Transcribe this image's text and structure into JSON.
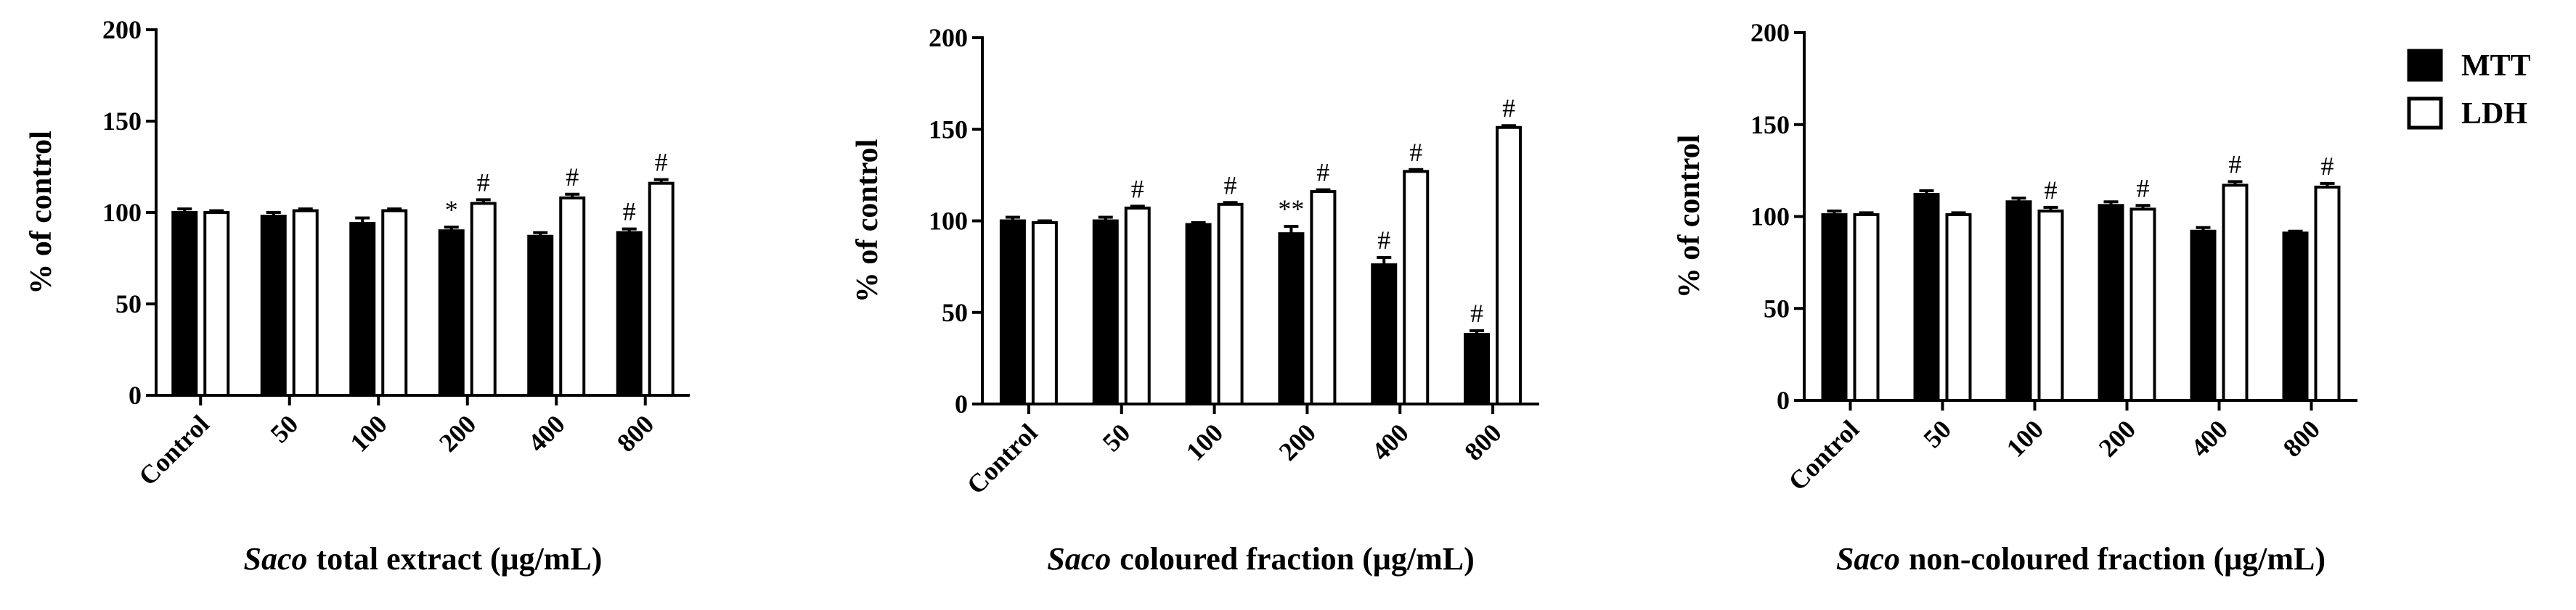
{
  "chart_data": [
    {
      "type": "bar",
      "y_label": "% of control",
      "x_label_italic": "Saco",
      "x_label": "total extract (μg/mL)",
      "categories": [
        "Control",
        "50",
        "100",
        "200",
        "400",
        "800"
      ],
      "ylim": [
        0,
        200
      ],
      "yticks": [
        0,
        50,
        100,
        150,
        200
      ],
      "series": [
        {
          "name": "MTT",
          "color": "#000000",
          "values": [
            100,
            98,
            94,
            90,
            87,
            89
          ],
          "errors": [
            2,
            2,
            3,
            2,
            2,
            2
          ],
          "annotations": [
            null,
            null,
            null,
            "*",
            null,
            "#"
          ]
        },
        {
          "name": "LDH",
          "color": "#ffffff",
          "values": [
            100,
            101,
            101,
            105,
            108,
            116
          ],
          "errors": [
            1,
            1,
            1,
            2,
            2,
            2
          ],
          "annotations": [
            null,
            null,
            null,
            "#",
            "#",
            "#"
          ]
        }
      ]
    },
    {
      "type": "bar",
      "y_label": "% of control",
      "x_label_italic": "Saco",
      "x_label": "coloured fraction (μg/mL)",
      "categories": [
        "Control",
        "50",
        "100",
        "200",
        "400",
        "800"
      ],
      "ylim": [
        0,
        200
      ],
      "yticks": [
        0,
        50,
        100,
        150,
        200
      ],
      "series": [
        {
          "name": "MTT",
          "color": "#000000",
          "values": [
            100,
            100,
            98,
            93,
            76,
            38
          ],
          "errors": [
            2,
            2,
            1,
            4,
            4,
            2
          ],
          "annotations": [
            null,
            null,
            null,
            "**",
            "#",
            "#"
          ]
        },
        {
          "name": "LDH",
          "color": "#ffffff",
          "values": [
            99,
            107,
            109,
            116,
            127,
            151
          ],
          "errors": [
            1,
            1,
            1,
            1,
            1,
            1
          ],
          "annotations": [
            null,
            "#",
            "#",
            "#",
            "#",
            "#"
          ]
        }
      ]
    },
    {
      "type": "bar",
      "y_label": "% of control",
      "x_label_italic": "Saco",
      "x_label": "non-coloured fraction (μg/mL)",
      "categories": [
        "Control",
        "50",
        "100",
        "200",
        "400",
        "800"
      ],
      "ylim": [
        0,
        200
      ],
      "yticks": [
        0,
        50,
        100,
        150,
        200
      ],
      "legend": "upper right",
      "series": [
        {
          "name": "MTT",
          "color": "#000000",
          "values": [
            101,
            112,
            108,
            106,
            92,
            91
          ],
          "errors": [
            2,
            2,
            2,
            2,
            2,
            1
          ],
          "annotations": [
            null,
            null,
            null,
            null,
            null,
            null
          ]
        },
        {
          "name": "LDH",
          "color": "#ffffff",
          "values": [
            101,
            101,
            103,
            104,
            117,
            116
          ],
          "errors": [
            1,
            1,
            2,
            2,
            2,
            2
          ],
          "annotations": [
            null,
            null,
            "#",
            "#",
            "#",
            "#"
          ]
        }
      ]
    }
  ]
}
